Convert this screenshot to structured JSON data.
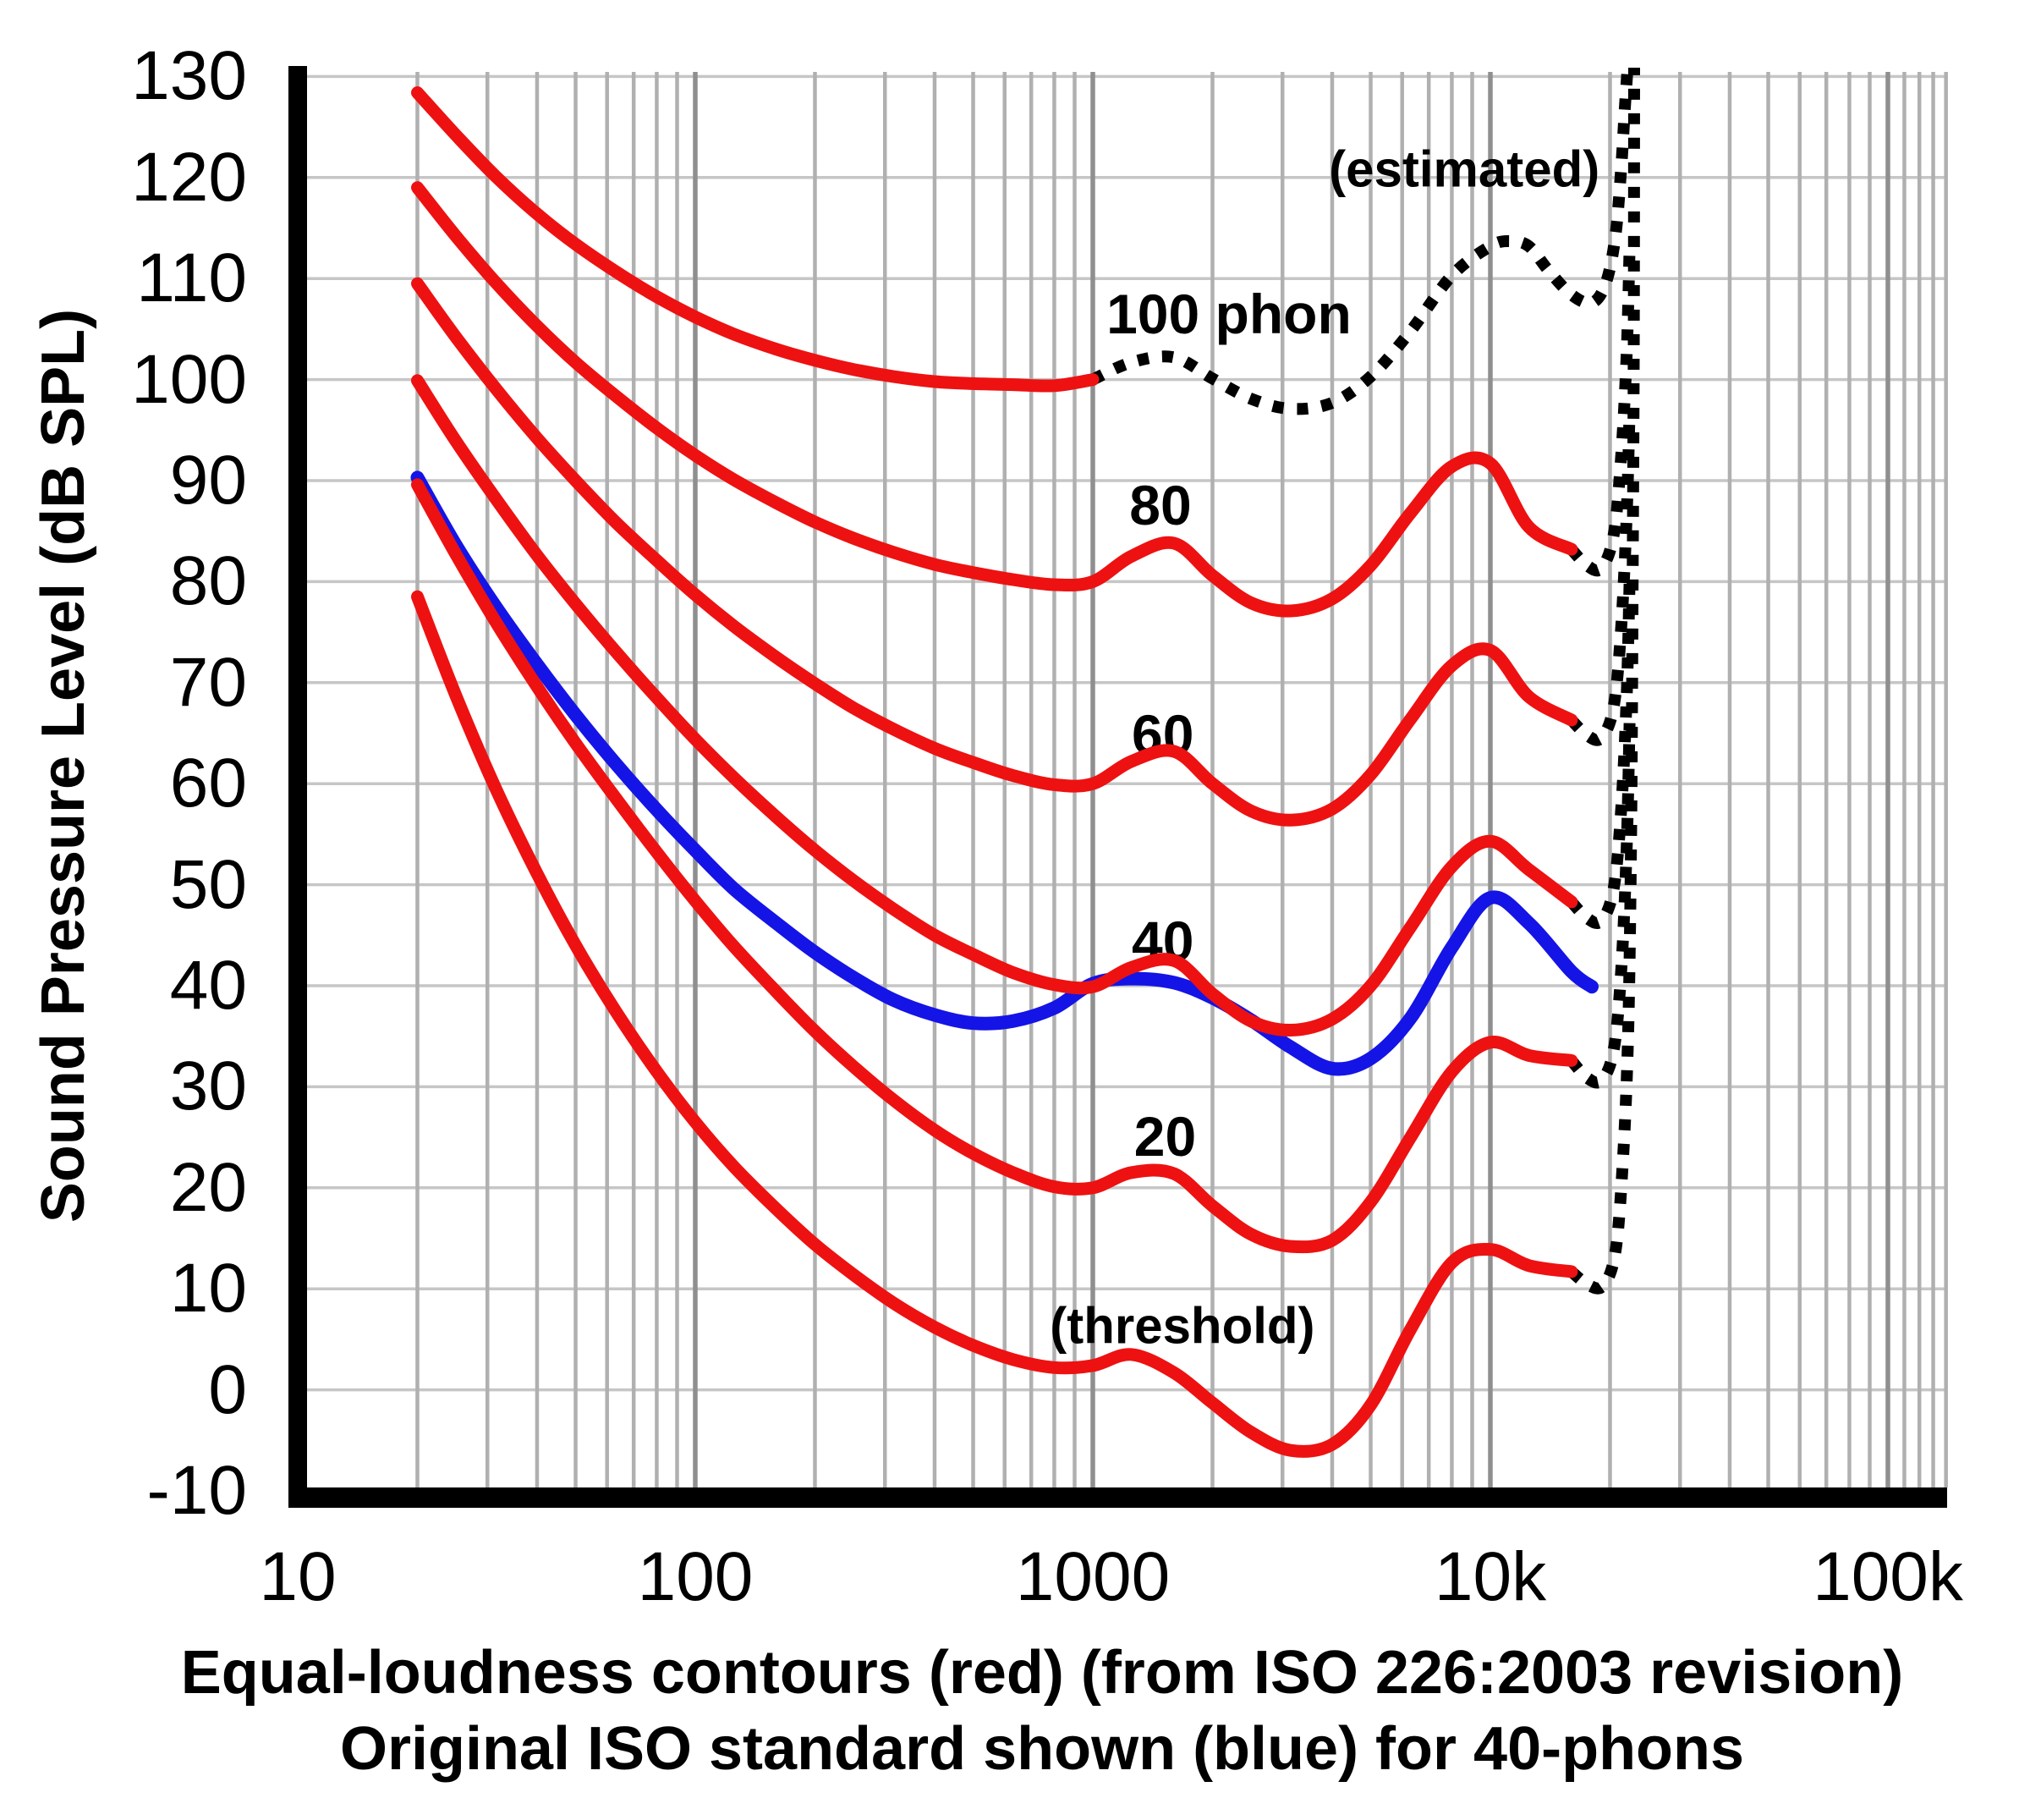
{
  "y_axis_title": "Sound Pressure Level (dB SPL)",
  "caption_line1": "Equal-loudness contours (red) (from ISO 226:2003 revision)",
  "caption_line2": "Original ISO standard shown (blue) for 40-phons",
  "chart_data": {
    "type": "line",
    "x_scale": "log",
    "x_axis_tick_labels": [
      "10",
      "100",
      "1000",
      "10k",
      "100k"
    ],
    "x_ticks": [
      {
        "f": 10,
        "label": "10"
      },
      {
        "f": 100,
        "label": "100"
      },
      {
        "f": 1000,
        "label": "1000"
      },
      {
        "f": 10000,
        "label": "10k"
      },
      {
        "f": 100000,
        "label": "100k"
      }
    ],
    "y_ticks": [
      130,
      120,
      110,
      100,
      90,
      80,
      70,
      60,
      50,
      40,
      30,
      20,
      10,
      0,
      -10
    ],
    "x_range_hz": [
      10,
      141000
    ],
    "y_range_db": [
      -10,
      130
    ],
    "ylabel": "Sound Pressure Level (dB SPL)",
    "grid": true,
    "legend_position": "none",
    "colors": {
      "red": "#ee1111",
      "blue": "#1414e6",
      "dotted": "#000000",
      "grid_minor": "#b0b0b0",
      "grid_decade": "#8f8f8f",
      "grid_horizontal": "#c6c6c6",
      "axis": "#000000"
    },
    "labels": [
      {
        "key": "estimated",
        "text": "(estimated)",
        "f": 8600,
        "db": 120.8,
        "cls": "paren-label"
      },
      {
        "key": "phon100",
        "text": "100 phon",
        "f": 2200,
        "db": 106.5,
        "cls": "curve-label"
      },
      {
        "key": "phon80",
        "text": "80",
        "f": 1480,
        "db": 87.6,
        "cls": "curve-label"
      },
      {
        "key": "phon60",
        "text": "60",
        "f": 1500,
        "db": 64.9,
        "cls": "curve-label"
      },
      {
        "key": "phon40",
        "text": "40",
        "f": 1500,
        "db": 44.4,
        "cls": "curve-label"
      },
      {
        "key": "phon20",
        "text": "20",
        "f": 1520,
        "db": 25.1,
        "cls": "curve-label"
      },
      {
        "key": "threshold",
        "text": "(threshold)",
        "f": 1680,
        "db": 6.3,
        "cls": "paren-label"
      }
    ],
    "series": [
      {
        "name": "threshold-estimated-extension",
        "color": "dotted",
        "style": "dotted",
        "points": [
          [
            16000,
            11.7
          ],
          [
            17600,
            10.4
          ],
          [
            19200,
            10.3
          ],
          [
            20600,
            13.5
          ],
          [
            21500,
            22
          ],
          [
            22200,
            35
          ],
          [
            22600,
            55
          ],
          [
            22800,
            80
          ],
          [
            22950,
            105
          ],
          [
            23000,
            131
          ]
        ]
      },
      {
        "name": "20-phon-estimated-extension",
        "color": "dotted",
        "style": "dotted",
        "points": [
          [
            16000,
            32.6
          ],
          [
            17500,
            30.9
          ],
          [
            19000,
            30.6
          ],
          [
            20400,
            33.5
          ],
          [
            21300,
            41
          ],
          [
            22000,
            53
          ],
          [
            22400,
            66
          ]
        ]
      },
      {
        "name": "40-phon-estimated-extension",
        "color": "dotted",
        "style": "dotted",
        "points": [
          [
            16000,
            48.3
          ],
          [
            17500,
            46.7
          ],
          [
            19000,
            46.4
          ],
          [
            20400,
            49.5
          ],
          [
            21300,
            57
          ],
          [
            22000,
            68
          ],
          [
            22400,
            80
          ]
        ]
      },
      {
        "name": "60-phon-estimated-extension",
        "color": "dotted",
        "style": "dotted",
        "points": [
          [
            16000,
            66.3
          ],
          [
            17500,
            64.8
          ],
          [
            19000,
            64.5
          ],
          [
            20400,
            67.5
          ],
          [
            21300,
            75
          ],
          [
            22000,
            86
          ],
          [
            22400,
            97
          ]
        ]
      },
      {
        "name": "80-phon-estimated-extension",
        "color": "dotted",
        "style": "dotted",
        "points": [
          [
            16000,
            83.2
          ],
          [
            17500,
            81.6
          ],
          [
            19000,
            81.3
          ],
          [
            20400,
            84.5
          ],
          [
            21300,
            92
          ],
          [
            22000,
            102
          ],
          [
            22400,
            113
          ]
        ]
      },
      {
        "name": "100-phon-estimated",
        "color": "dotted",
        "style": "dotted",
        "points": [
          [
            1000,
            100
          ],
          [
            1250,
            101.7
          ],
          [
            1600,
            102.2
          ],
          [
            2000,
            100.1
          ],
          [
            2500,
            98.1
          ],
          [
            3150,
            97.1
          ],
          [
            4000,
            97.7
          ],
          [
            5000,
            100.3
          ],
          [
            6300,
            104.8
          ],
          [
            8000,
            110.3
          ],
          [
            10000,
            113.2
          ],
          [
            11200,
            113.7
          ],
          [
            12500,
            113.2
          ],
          [
            14000,
            110.8
          ],
          [
            16000,
            108.4
          ],
          [
            18000,
            107.6
          ],
          [
            19500,
            109.5
          ],
          [
            20600,
            114
          ],
          [
            21300,
            120.5
          ],
          [
            21800,
            127
          ],
          [
            22200,
            131.5
          ]
        ]
      },
      {
        "name": "original-iso-40-phon",
        "color": "blue",
        "style": "solid",
        "points": [
          [
            20,
            90.3
          ],
          [
            25,
            83.6
          ],
          [
            31.5,
            77.5
          ],
          [
            40,
            71.8
          ],
          [
            50,
            66.8
          ],
          [
            63,
            62
          ],
          [
            80,
            57.4
          ],
          [
            100,
            53.4
          ],
          [
            125,
            49.6
          ],
          [
            160,
            46.2
          ],
          [
            200,
            43.3
          ],
          [
            250,
            40.8
          ],
          [
            315,
            38.6
          ],
          [
            400,
            37.1
          ],
          [
            500,
            36.3
          ],
          [
            630,
            36.5
          ],
          [
            800,
            37.8
          ],
          [
            1000,
            40.2
          ],
          [
            1250,
            40.7
          ],
          [
            1600,
            40.3
          ],
          [
            2000,
            38.8
          ],
          [
            2500,
            36.6
          ],
          [
            3150,
            33.9
          ],
          [
            4000,
            31.8
          ],
          [
            5000,
            32.8
          ],
          [
            6300,
            36.8
          ],
          [
            8000,
            43.8
          ],
          [
            10000,
            48.7
          ],
          [
            12500,
            46.2
          ],
          [
            16000,
            41.4
          ],
          [
            18000,
            39.9
          ]
        ]
      },
      {
        "name": "threshold",
        "color": "red",
        "style": "solid",
        "points": [
          [
            20,
            78.5
          ],
          [
            25,
            68.7
          ],
          [
            31.5,
            59.5
          ],
          [
            40,
            51.1
          ],
          [
            50,
            44
          ],
          [
            63,
            37.5
          ],
          [
            80,
            31.5
          ],
          [
            100,
            26.5
          ],
          [
            125,
            22.1
          ],
          [
            160,
            17.9
          ],
          [
            200,
            14.4
          ],
          [
            250,
            11.4
          ],
          [
            315,
            8.6
          ],
          [
            400,
            6.2
          ],
          [
            500,
            4.4
          ],
          [
            630,
            3
          ],
          [
            800,
            2.2
          ],
          [
            1000,
            2.4
          ],
          [
            1250,
            3.5
          ],
          [
            1600,
            1.7
          ],
          [
            2000,
            -1.3
          ],
          [
            2500,
            -4.2
          ],
          [
            3150,
            -6
          ],
          [
            4000,
            -5.4
          ],
          [
            5000,
            -1.5
          ],
          [
            6300,
            6
          ],
          [
            8000,
            12.6
          ],
          [
            10000,
            13.9
          ],
          [
            12500,
            12.3
          ],
          [
            16000,
            11.7
          ]
        ]
      },
      {
        "name": "20-phon",
        "color": "red",
        "style": "solid",
        "points": [
          [
            20,
            89.6
          ],
          [
            25,
            82.7
          ],
          [
            31.5,
            76
          ],
          [
            40,
            69.6
          ],
          [
            50,
            64
          ],
          [
            63,
            58.6
          ],
          [
            80,
            53.2
          ],
          [
            100,
            48.4
          ],
          [
            125,
            43.9
          ],
          [
            160,
            39.4
          ],
          [
            200,
            35.5
          ],
          [
            250,
            32
          ],
          [
            315,
            28.7
          ],
          [
            400,
            25.7
          ],
          [
            500,
            23.4
          ],
          [
            630,
            21.5
          ],
          [
            800,
            20.1
          ],
          [
            1000,
            20
          ],
          [
            1250,
            21.5
          ],
          [
            1600,
            21.4
          ],
          [
            2000,
            18.2
          ],
          [
            2500,
            15.4
          ],
          [
            3150,
            14.2
          ],
          [
            4000,
            14.8
          ],
          [
            5000,
            18.6
          ],
          [
            6300,
            25
          ],
          [
            8000,
            31.5
          ],
          [
            10000,
            34.4
          ],
          [
            12500,
            33.1
          ],
          [
            16000,
            32.6
          ]
        ]
      },
      {
        "name": "40-phon",
        "color": "red",
        "style": "solid",
        "points": [
          [
            20,
            99.9
          ],
          [
            25,
            93.9
          ],
          [
            31.5,
            88.2
          ],
          [
            40,
            82.6
          ],
          [
            50,
            77.8
          ],
          [
            63,
            73.1
          ],
          [
            80,
            68.5
          ],
          [
            100,
            64.4
          ],
          [
            125,
            60.6
          ],
          [
            160,
            56.7
          ],
          [
            200,
            53.4
          ],
          [
            250,
            50.4
          ],
          [
            315,
            47.6
          ],
          [
            400,
            45
          ],
          [
            500,
            43.1
          ],
          [
            630,
            41.3
          ],
          [
            800,
            40.1
          ],
          [
            1000,
            39.9
          ],
          [
            1250,
            41.8
          ],
          [
            1600,
            42.5
          ],
          [
            2000,
            39.2
          ],
          [
            2500,
            36.5
          ],
          [
            3150,
            35.6
          ],
          [
            4000,
            36.7
          ],
          [
            5000,
            40
          ],
          [
            6300,
            45.8
          ],
          [
            8000,
            51.8
          ],
          [
            10000,
            54.3
          ],
          [
            12500,
            51.5
          ],
          [
            16000,
            48.3
          ]
        ]
      },
      {
        "name": "60-phon",
        "color": "red",
        "style": "solid",
        "points": [
          [
            20,
            109.5
          ],
          [
            25,
            104.2
          ],
          [
            31.5,
            99.1
          ],
          [
            40,
            94.2
          ],
          [
            50,
            90
          ],
          [
            63,
            85.9
          ],
          [
            80,
            82.1
          ],
          [
            100,
            78.7
          ],
          [
            125,
            75.6
          ],
          [
            160,
            72.5
          ],
          [
            200,
            69.9
          ],
          [
            250,
            67.5
          ],
          [
            315,
            65.4
          ],
          [
            400,
            63.5
          ],
          [
            500,
            62.1
          ],
          [
            630,
            60.8
          ],
          [
            800,
            59.9
          ],
          [
            1000,
            60
          ],
          [
            1250,
            62.2
          ],
          [
            1600,
            63.2
          ],
          [
            2000,
            60
          ],
          [
            2500,
            57.3
          ],
          [
            3150,
            56.4
          ],
          [
            4000,
            57.5
          ],
          [
            5000,
            60.9
          ],
          [
            6300,
            66.4
          ],
          [
            8000,
            71.7
          ],
          [
            10000,
            73.2
          ],
          [
            12500,
            68.6
          ],
          [
            16000,
            66.3
          ]
        ]
      },
      {
        "name": "80-phon",
        "color": "red",
        "style": "solid",
        "points": [
          [
            20,
            119
          ],
          [
            25,
            114.2
          ],
          [
            31.5,
            109.6
          ],
          [
            40,
            105.3
          ],
          [
            50,
            101.7
          ],
          [
            63,
            98.4
          ],
          [
            80,
            95.2
          ],
          [
            100,
            92.5
          ],
          [
            125,
            90.1
          ],
          [
            160,
            87.8
          ],
          [
            200,
            85.9
          ],
          [
            250,
            84.3
          ],
          [
            315,
            82.9
          ],
          [
            400,
            81.7
          ],
          [
            500,
            80.9
          ],
          [
            630,
            80.2
          ],
          [
            800,
            79.7
          ],
          [
            1000,
            80
          ],
          [
            1250,
            82.5
          ],
          [
            1600,
            83.8
          ],
          [
            2000,
            80.6
          ],
          [
            2500,
            77.9
          ],
          [
            3150,
            77.1
          ],
          [
            4000,
            78.3
          ],
          [
            5000,
            81.6
          ],
          [
            6300,
            86.8
          ],
          [
            8000,
            91.4
          ],
          [
            10000,
            91.7
          ],
          [
            12500,
            85.4
          ],
          [
            16000,
            83.2
          ]
        ]
      },
      {
        "name": "100-phon",
        "color": "red",
        "style": "solid",
        "points": [
          [
            20,
            128.4
          ],
          [
            25,
            124.2
          ],
          [
            31.5,
            120.1
          ],
          [
            40,
            116.4
          ],
          [
            50,
            113.4
          ],
          [
            63,
            110.7
          ],
          [
            80,
            108.2
          ],
          [
            100,
            106.2
          ],
          [
            125,
            104.5
          ],
          [
            160,
            103
          ],
          [
            200,
            101.9
          ],
          [
            250,
            101
          ],
          [
            315,
            100.3
          ],
          [
            400,
            99.8
          ],
          [
            500,
            99.6
          ],
          [
            630,
            99.5
          ],
          [
            800,
            99.4
          ],
          [
            1000,
            100
          ]
        ]
      }
    ]
  }
}
